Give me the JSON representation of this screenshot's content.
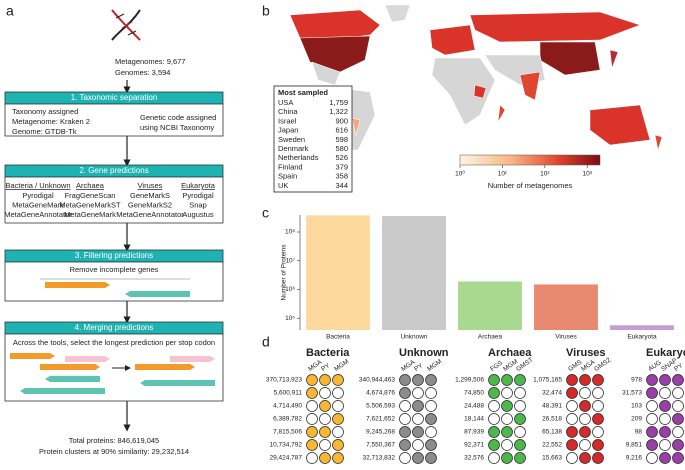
{
  "panel_labels": [
    "a",
    "b",
    "c",
    "d"
  ],
  "workflow": {
    "inputs": [
      "Metagenomes: 9,677",
      "Genomes: 3,594"
    ],
    "steps": [
      {
        "title": "1. Taxonomic separation",
        "left": [
          "Taxonomy assigned",
          "Metagenome: Kraken 2",
          "Genome: GTDB-Tk"
        ],
        "right": [
          "Genetic code assigned",
          "using NCBI Taxonomy"
        ]
      },
      {
        "title": "2. Gene predictions",
        "columns": [
          {
            "header": "Bacteria / Unknown",
            "tools": [
              "Pyrodigal",
              "MetaGeneMark",
              "MetaGeneAnnotator"
            ]
          },
          {
            "header": "Archaea",
            "tools": [
              "FragGeneScan",
              "MetaGeneMarkST",
              "MetaGeneMark"
            ]
          },
          {
            "header": "Viruses",
            "tools": [
              "GeneMarkS",
              "GeneMarkS2",
              "MetaGeneAnnotator"
            ]
          },
          {
            "header": "Eukaryota",
            "tools": [
              "Pyrodigal",
              "Snap",
              "Augustus"
            ]
          }
        ]
      },
      {
        "title": "3. Filtering predictions",
        "text": "Remove incomplete genes"
      },
      {
        "title": "4. Merging predictions",
        "text": "Across the tools, select the longest prediction per stop codon"
      }
    ],
    "outputs": [
      "Total proteins: 846,619,045",
      "Protein clusters at 90% similarity: 29,232,514"
    ]
  },
  "map": {
    "inset_title": "Most sampled",
    "countries": [
      "USA",
      "China",
      "Israel",
      "Japan",
      "Sweden",
      "Denmark",
      "Netherlands",
      "Finland",
      "Spain",
      "UK"
    ],
    "counts": [
      "1,759",
      "1,322",
      "900",
      "616",
      "598",
      "580",
      "526",
      "379",
      "358",
      "344"
    ],
    "colorbar": {
      "label": "Number of metagenomes",
      "lim": [
        1,
        2000
      ],
      "ticks": [
        {
          "value": 1,
          "label": "10⁰"
        },
        {
          "value": 10,
          "label": "10¹"
        },
        {
          "value": 100,
          "label": "10²"
        },
        {
          "value": 1000,
          "label": "10³"
        }
      ]
    }
  },
  "chart_data": {
    "type": "bar",
    "ylabel": "Number of Proteins",
    "log": true,
    "categories": [
      "Bacteria",
      "Unknown",
      "Archaea",
      "Viruses",
      "Eukaryota"
    ],
    "values": [
      380000000,
      360000000,
      1900000,
      1500000,
      57000
    ],
    "colors": [
      "#fdd9a0",
      "#c9c9c9",
      "#a8d98f",
      "#e88a70",
      "#c99dd2"
    ],
    "ylim": [
      39000,
      390000000
    ],
    "yticks": [
      {
        "value": 100000,
        "label": "10⁵"
      },
      {
        "value": 1000000,
        "label": "10⁶"
      },
      {
        "value": 10000000,
        "label": "10⁷"
      },
      {
        "value": 100000000,
        "label": "10⁸"
      }
    ]
  },
  "matrix": {
    "groups": [
      {
        "name": "Bacteria",
        "color": "#f7b733",
        "tools": [
          "MGA",
          "PY",
          "MGM"
        ],
        "counts": [
          "370,713,923",
          "5,600,911",
          "4,714,490",
          "6,389,782",
          "7,815,506",
          "10,734,792",
          "29,424,787"
        ]
      },
      {
        "name": "Unknown",
        "color": "#8c8c8c",
        "tools": [
          "MGA",
          "PY",
          "MGM"
        ],
        "counts": [
          "340,944,463",
          "4,674,876",
          "5,506,593",
          "7,621,652",
          "9,245,268",
          "7,550,367",
          "32,713,832"
        ]
      },
      {
        "name": "Archaea",
        "color": "#4cb84c",
        "tools": [
          "FGS",
          "MGM",
          "GMST"
        ],
        "counts": [
          "1,299,506",
          "74,850",
          "24,488",
          "18,144",
          "87,939",
          "92,371",
          "32,576"
        ]
      },
      {
        "name": "Viruses",
        "color": "#d42a2a",
        "tools": [
          "GMS",
          "MGA",
          "GMS2"
        ],
        "counts": [
          "1,075,165",
          "32,474",
          "48,391",
          "26,518",
          "65,138",
          "22,552",
          "15,663"
        ]
      },
      {
        "name": "Eukaryota",
        "color": "#9b3fa8",
        "tools": [
          "AUG",
          "SNAP",
          "PY"
        ],
        "counts": [
          "978",
          "31,573",
          "103",
          "209",
          "98",
          "9,851",
          "9,216"
        ]
      }
    ],
    "combinations": [
      [
        1,
        1,
        1
      ],
      [
        1,
        0,
        0
      ],
      [
        0,
        1,
        0
      ],
      [
        0,
        0,
        1
      ],
      [
        1,
        1,
        0
      ],
      [
        1,
        0,
        1
      ],
      [
        0,
        1,
        1
      ]
    ]
  }
}
